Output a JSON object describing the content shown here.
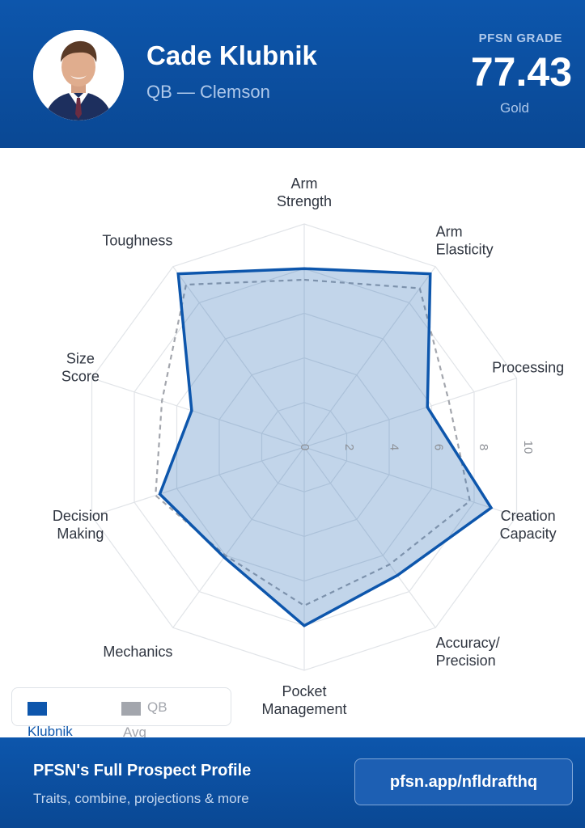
{
  "header": {
    "player_name": "Cade Klubnik",
    "position_school": "QB — Clemson",
    "grade_label": "PFSN GRADE",
    "grade_value": "77.43",
    "grade_tier": "Gold"
  },
  "legend": {
    "player_label": "Klubnik",
    "avg_label_line1": "QB",
    "avg_label_line2": "Avg"
  },
  "footer": {
    "title": "PFSN's Full Prospect Profile",
    "subtitle": "Traits, combine, projections & more",
    "link": "pfsn.app/nfldrafthq"
  },
  "colors": {
    "brand_blue": "#0a4894",
    "player_series": "#0d56ac",
    "avg_series": "#a3a6ad"
  },
  "chart_data": {
    "type": "radar",
    "axes": [
      [
        "Arm",
        "Strength"
      ],
      [
        "Arm",
        "Elasticity"
      ],
      [
        "Processing"
      ],
      [
        "Creation",
        "Capacity"
      ],
      [
        "Accuracy/",
        "Precision"
      ],
      [
        "Pocket",
        "Management"
      ],
      [
        "Mechanics"
      ],
      [
        "Decision",
        "Making"
      ],
      [
        "Size",
        "Score"
      ],
      [
        "Toughness"
      ]
    ],
    "range": [
      0,
      10
    ],
    "ticks": [
      0,
      2,
      4,
      6,
      8,
      10
    ],
    "series": [
      {
        "name": "Klubnik",
        "values": [
          8.0,
          9.6,
          5.8,
          8.8,
          7.1,
          8.0,
          6.1,
          6.8,
          5.3,
          9.6
        ]
      },
      {
        "name": "QB Avg",
        "values": [
          7.5,
          8.8,
          6.8,
          7.8,
          6.5,
          7.1,
          6.0,
          7.0,
          6.7,
          9.0
        ]
      }
    ]
  }
}
